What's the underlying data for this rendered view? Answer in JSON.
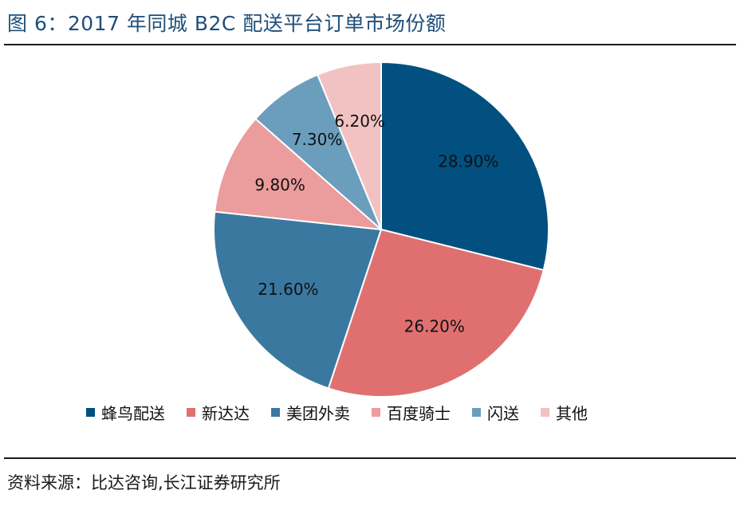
{
  "figure": {
    "title": "图 6：2017 年同城 B2C 配送平台订单市场份额",
    "source": "资料来源：比达咨询,长江证券研究所"
  },
  "chart_data": {
    "type": "pie",
    "title": "",
    "start": "12 o'clock",
    "direction": "clockwise",
    "slices": [
      {
        "name": "蜂鸟配送",
        "value": 28.9,
        "label": "28.90%",
        "color": "#01507f"
      },
      {
        "name": "新达达",
        "value": 26.2,
        "label": "26.20%",
        "color": "#e07070"
      },
      {
        "name": "美团外卖",
        "value": 21.6,
        "label": "21.60%",
        "color": "#3a78a0"
      },
      {
        "name": "百度骑士",
        "value": 9.8,
        "label": "9.80%",
        "color": "#eb9c9c"
      },
      {
        "name": "闪送",
        "value": 7.3,
        "label": "7.30%",
        "color": "#6b9dbd"
      },
      {
        "name": "其他",
        "value": 6.2,
        "label": "6.20%",
        "color": "#f2c2c2"
      }
    ],
    "legend_position": "bottom"
  }
}
